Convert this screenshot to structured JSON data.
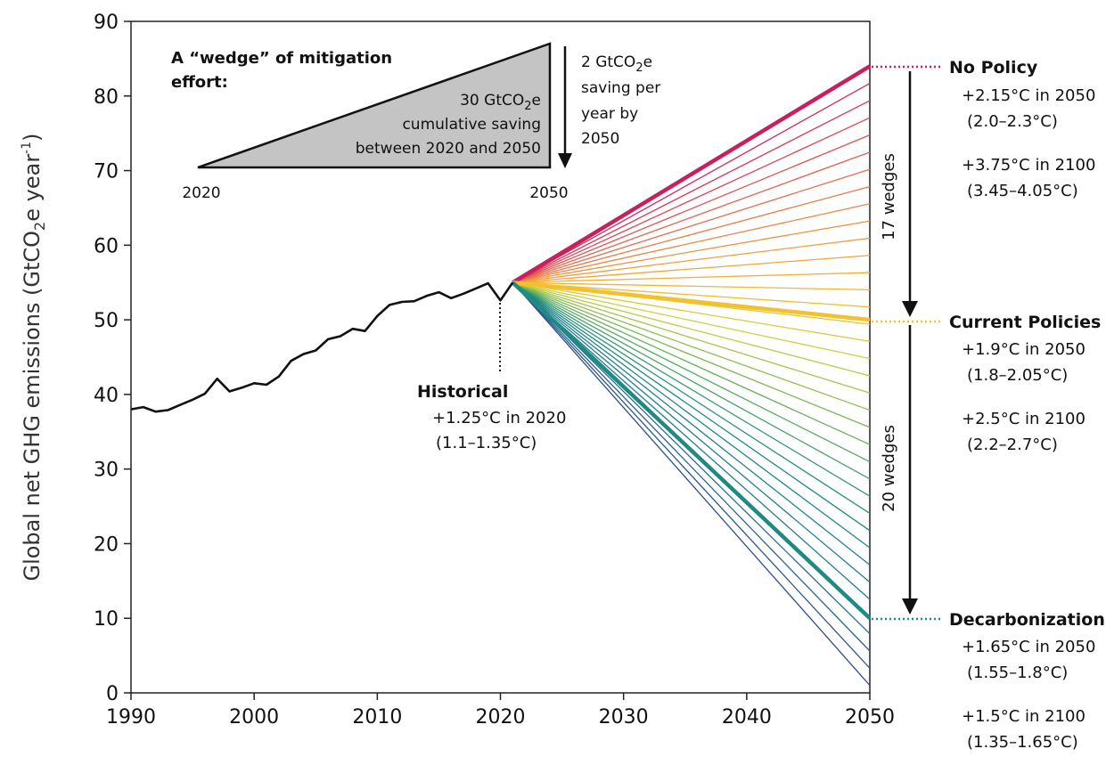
{
  "chart_data": {
    "type": "line",
    "ylabel_main": "Global net GHG emissions (GtCO",
    "ylabel_sub": "2",
    "ylabel_mid": "e year",
    "ylabel_sup": "-1",
    "ylabel_end": ")",
    "xlim": [
      1990,
      2050
    ],
    "ylim": [
      0,
      90
    ],
    "x_ticks": [
      "1990",
      "2000",
      "2010",
      "2020",
      "2030",
      "2040",
      "2050"
    ],
    "y_ticks": [
      "0",
      "10",
      "20",
      "30",
      "40",
      "50",
      "60",
      "70",
      "80",
      "90"
    ],
    "historical": {
      "x": [
        1990,
        1991,
        1992,
        1993,
        1994,
        1995,
        1996,
        1997,
        1998,
        1999,
        2000,
        2001,
        2002,
        2003,
        2004,
        2005,
        2006,
        2007,
        2008,
        2009,
        2010,
        2011,
        2012,
        2013,
        2014,
        2015,
        2016,
        2017,
        2018,
        2019,
        2020,
        2021
      ],
      "y": [
        38.0,
        38.3,
        37.7,
        37.9,
        38.6,
        39.3,
        40.1,
        42.1,
        40.4,
        40.9,
        41.5,
        41.3,
        42.4,
        44.5,
        45.4,
        45.9,
        47.4,
        47.8,
        48.8,
        48.5,
        50.5,
        52.0,
        52.4,
        52.5,
        53.2,
        53.7,
        52.9,
        53.5,
        54.2,
        54.9,
        52.6,
        55.0
      ]
    },
    "fan": {
      "start": [
        2021,
        55
      ],
      "end_x": 2050,
      "end_min": 1,
      "end_max": 84,
      "count": 37,
      "highlight": [
        {
          "name": "No Policy",
          "end": 84,
          "color": "#c8205e"
        },
        {
          "name": "Current Policies",
          "end": 50,
          "color": "#f2c12e"
        },
        {
          "name": "Decarbonization",
          "end": 10,
          "color": "#1e8a82"
        }
      ]
    },
    "annotations": {
      "historical": {
        "title": "Historical",
        "line1": "+1.25°C in 2020",
        "line2": "(1.1–1.35°C)"
      },
      "no_policy": {
        "title": "No Policy",
        "line1": "+2.15°C in 2050",
        "line2": "(2.0–2.3°C)",
        "line3": "+3.75°C in 2100",
        "line4": "(3.45–4.05°C)"
      },
      "current": {
        "title": "Current Policies",
        "line1": "+1.9°C in 2050",
        "line2": "(1.8–2.05°C)",
        "line3": "+2.5°C in 2100",
        "line4": "(2.2–2.7°C)"
      },
      "decarb": {
        "title": "Decarbonization",
        "line1": "+1.65°C in 2050",
        "line2": "(1.55–1.8°C)",
        "line3": "+1.5°C in 2100",
        "line4": "(1.35–1.65°C)"
      },
      "wedges_upper": "17 wedges",
      "wedges_lower": "20 wedges"
    },
    "inset": {
      "title1": "A “wedge” of mitigation",
      "title2": "effort:",
      "inner1_a": "30 GtCO",
      "inner1_sub": "2",
      "inner1_b": "e",
      "inner2": "cumulative saving",
      "inner3": "between 2020 and 2050",
      "right1_a": "2 GtCO",
      "right1_sub": "2",
      "right1_b": "e",
      "right2": "saving per",
      "right3": "year by",
      "right4": "2050",
      "x_left": "2020",
      "x_right": "2050"
    }
  }
}
